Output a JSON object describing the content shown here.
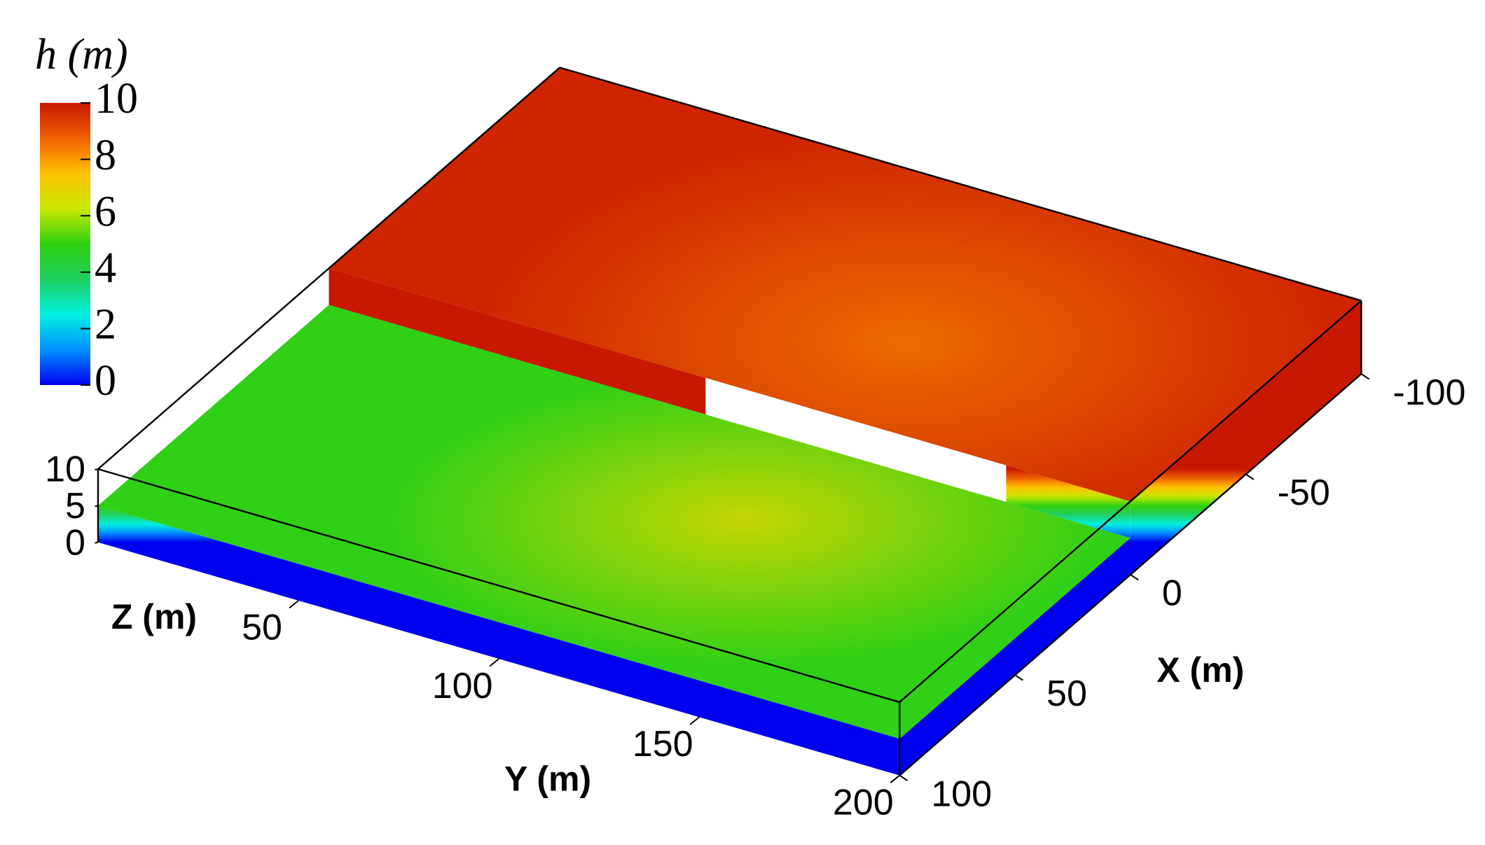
{
  "chart_data": {
    "type": "surface3d",
    "colorbar": {
      "title": "h (m)",
      "clim": [
        0,
        10
      ],
      "ticks": [
        0,
        2,
        4,
        6,
        8,
        10
      ],
      "colormap": [
        "#0000f0",
        "#0090ff",
        "#00f0e0",
        "#20d060",
        "#30d010",
        "#c8e800",
        "#ffc000",
        "#f06000",
        "#c81800"
      ]
    },
    "xlabel": "X (m)",
    "xlim": [
      -100,
      100
    ],
    "xticks": [
      -100,
      -50,
      0,
      50,
      100
    ],
    "ylabel": "Y (m)",
    "ylim": [
      0,
      200
    ],
    "yticks": [
      50,
      100,
      150,
      200
    ],
    "zlabel": "Z (m)",
    "zlim": [
      0,
      10
    ],
    "zticks": [
      0,
      5,
      10
    ]
  }
}
